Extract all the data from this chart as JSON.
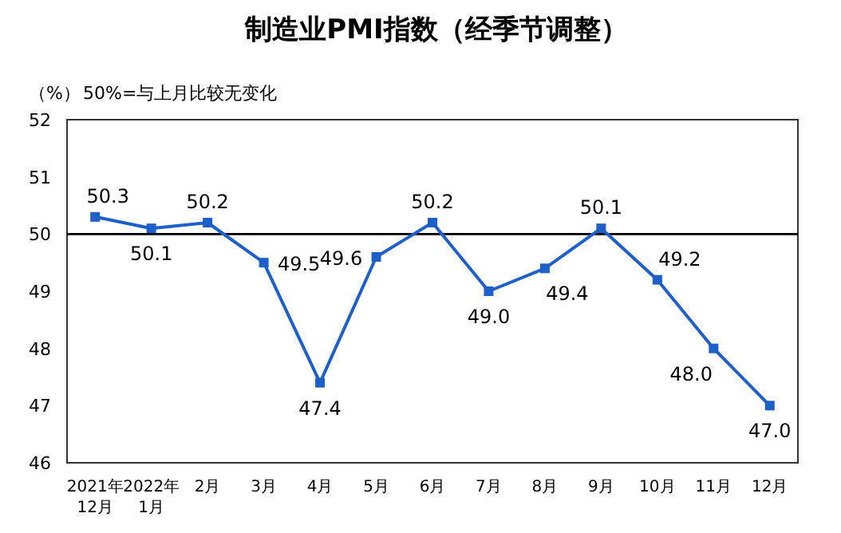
{
  "chart_data": {
    "type": "line",
    "title": "制造业PMI指数（经季节调整）",
    "ylabel": "（%）",
    "annotations": [
      "50%=与上月比较无变化"
    ],
    "categories": [
      "2021年\n12月",
      "2022年\n1月",
      "2月",
      "3月",
      "4月",
      "5月",
      "6月",
      "7月",
      "8月",
      "9月",
      "10月",
      "11月",
      "12月"
    ],
    "series": [
      {
        "color": "#1f5fc8",
        "values": [
          50.3,
          50.1,
          50.2,
          49.5,
          47.4,
          49.6,
          50.2,
          49.0,
          49.4,
          50.1,
          49.2,
          48.0,
          47.0
        ],
        "value_labels": [
          "50.3",
          "50.1",
          "50.2",
          "49.5",
          "47.4",
          "49.6",
          "50.2",
          "49.0",
          "49.4",
          "50.1",
          "49.2",
          "48.0",
          "47.0"
        ]
      }
    ],
    "ylim": [
      46,
      52
    ],
    "yticks": [
      46,
      47,
      48,
      49,
      50,
      51,
      52
    ],
    "ref_lines": [
      {
        "axis": "y",
        "value": 50,
        "color": "#000000"
      }
    ],
    "marker": "square",
    "line_style": "solid",
    "grid": false
  }
}
